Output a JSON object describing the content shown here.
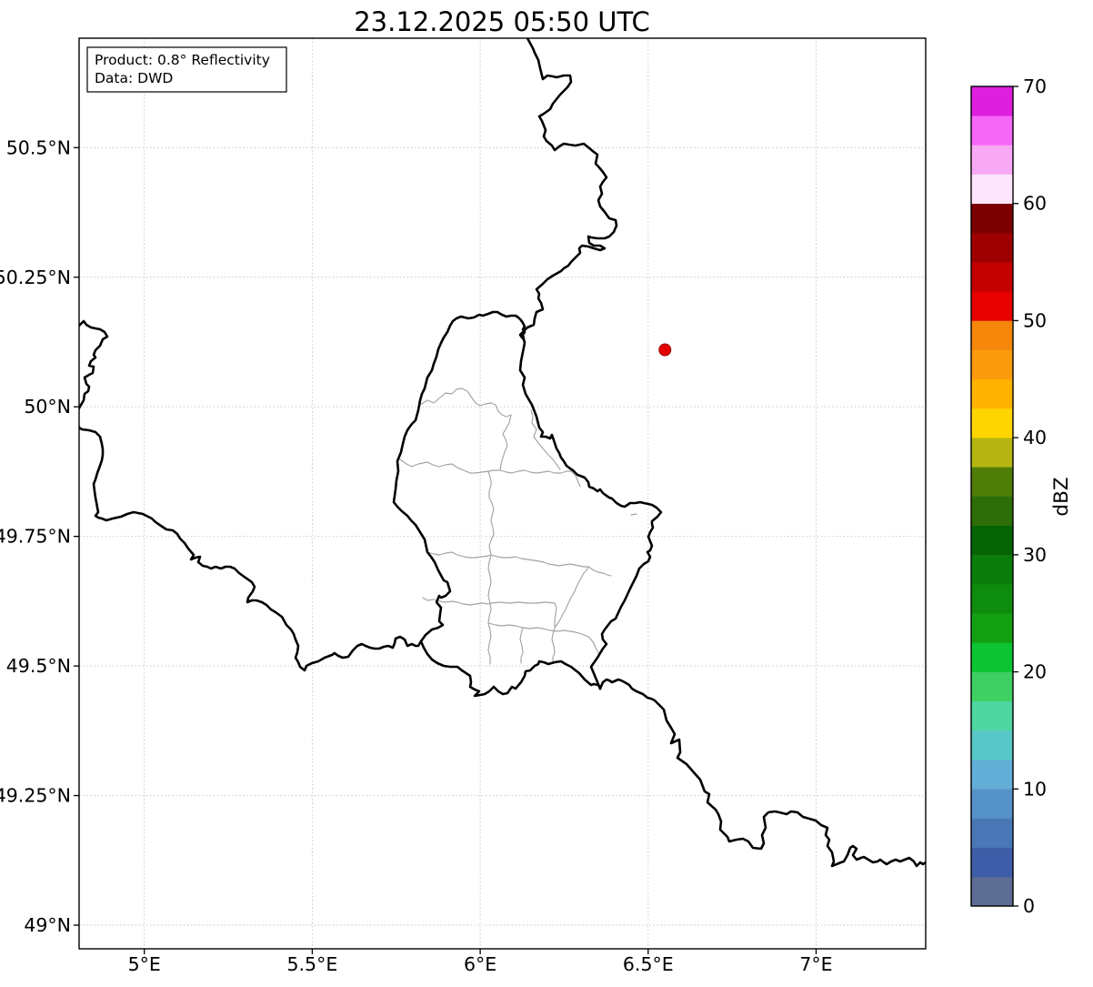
{
  "title": "23.12.2025 05:50 UTC",
  "info_box": {
    "line1": "Product: 0.8° Reflectivity",
    "line2": "Data: DWD"
  },
  "axes": {
    "x_ticks": [
      {
        "value": 5.0,
        "label": "5°E"
      },
      {
        "value": 5.5,
        "label": "5.5°E"
      },
      {
        "value": 6.0,
        "label": "6°E"
      },
      {
        "value": 6.5,
        "label": "6.5°E"
      },
      {
        "value": 7.0,
        "label": "7°E"
      }
    ],
    "y_ticks": [
      {
        "value": 49.0,
        "label": "49°N"
      },
      {
        "value": 49.25,
        "label": "49.25°N"
      },
      {
        "value": 49.5,
        "label": "49.5°N"
      },
      {
        "value": 49.75,
        "label": "49.75°N"
      },
      {
        "value": 50.0,
        "label": "50°N"
      },
      {
        "value": 50.25,
        "label": "50.25°N"
      },
      {
        "value": 50.5,
        "label": "50.5°N"
      }
    ]
  },
  "colorbar": {
    "label": "dBZ",
    "min": 0,
    "max": 70,
    "segment_step": 2.5,
    "ticks": [
      {
        "value": 0,
        "label": "0"
      },
      {
        "value": 10,
        "label": "10"
      },
      {
        "value": 20,
        "label": "20"
      },
      {
        "value": 30,
        "label": "30"
      },
      {
        "value": 40,
        "label": "40"
      },
      {
        "value": 50,
        "label": "50"
      },
      {
        "value": 60,
        "label": "60"
      },
      {
        "value": 70,
        "label": "70"
      }
    ],
    "colors_bottom_to_top": [
      "#5e6d94",
      "#3f5da8",
      "#4a77b6",
      "#5592c8",
      "#63aed6",
      "#57c7c7",
      "#4fd6a2",
      "#3ed063",
      "#0cc433",
      "#12a012",
      "#0e8c0e",
      "#0b7d0b",
      "#046404",
      "#2e6e08",
      "#4f7d08",
      "#b5b511",
      "#ffd500",
      "#ffb300",
      "#fc9b0c",
      "#f5870a",
      "#e60000",
      "#c40000",
      "#9e0000",
      "#7c0000",
      "#fde6fd",
      "#f8a9f4",
      "#f767f7",
      "#de1fde"
    ]
  },
  "marker": {
    "name": "radar-location",
    "lon": 6.55,
    "lat": 50.11,
    "fill": "#e50000",
    "edge": "#990000"
  },
  "style_colors": {
    "country_border": "#000000",
    "district_border": "#a3a3a3",
    "grid": "#c0c0c0"
  }
}
